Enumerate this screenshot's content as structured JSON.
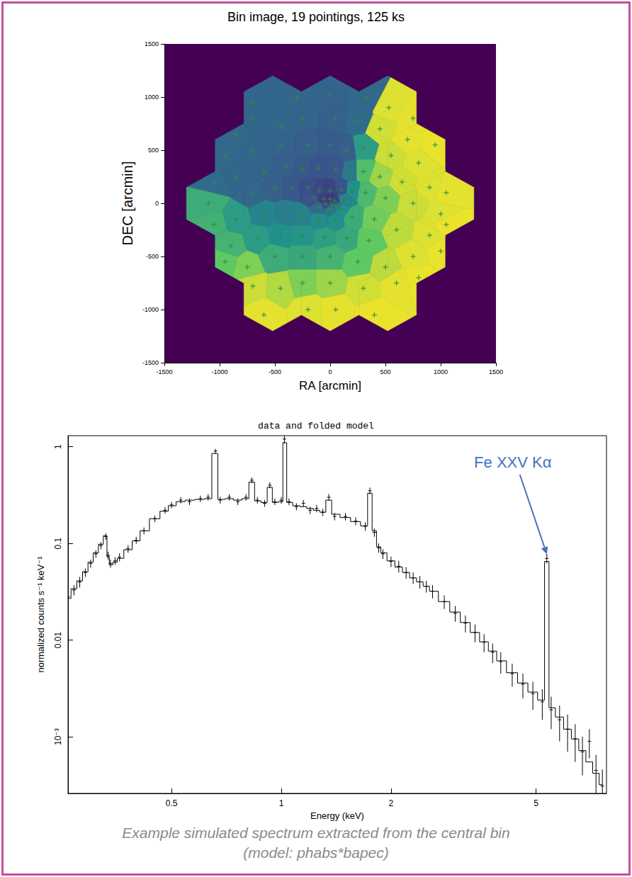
{
  "chart_data": [
    {
      "type": "binmap",
      "title": "Bin image, 19 pointings, 125 ks",
      "x_label": "RA [arcmin]",
      "y_label": "DEC [arcmin]",
      "xlim": [
        -1500,
        1500
      ],
      "ylim": [
        -1500,
        1500
      ],
      "xticks": [
        -1500,
        -1000,
        -500,
        0,
        500,
        1000,
        1500
      ],
      "yticks": [
        -1500,
        -1000,
        -500,
        0,
        500,
        1000,
        1500
      ],
      "marker": "plus",
      "pointings": {
        "x": [
          -520,
          0,
          520,
          -780,
          -260,
          260,
          780,
          -1040,
          -520,
          0,
          520,
          1040,
          -780,
          -260,
          260,
          780,
          -520,
          0,
          520
        ],
        "y": [
          900,
          900,
          900,
          450,
          450,
          450,
          450,
          0,
          0,
          0,
          0,
          0,
          -450,
          -450,
          -450,
          -450,
          -900,
          -900,
          -900
        ],
        "radius": 300
      },
      "color_range": [
        0,
        1
      ],
      "bins": {
        "x": [
          -700,
          -300,
          0,
          330,
          530,
          750,
          -700,
          -450,
          -250,
          50,
          250,
          450,
          700,
          950,
          -850,
          -950,
          -700,
          -450,
          -200,
          0,
          150,
          300,
          550,
          800,
          -1050,
          -850,
          -600,
          -400,
          -250,
          -100,
          50,
          180,
          300,
          450,
          650,
          900,
          1050,
          -700,
          -500,
          -350,
          -200,
          -100,
          0,
          100,
          200,
          320,
          500,
          750,
          1000,
          -60,
          0,
          40,
          -40,
          20,
          60,
          -100,
          0,
          100,
          130,
          -150,
          -1100,
          -1050,
          -850,
          -600,
          -400,
          -250,
          -100,
          50,
          200,
          400,
          600,
          900,
          1050,
          -900,
          -650,
          -450,
          -250,
          -50,
          150,
          350,
          750,
          1000,
          -950,
          -750,
          -500,
          -250,
          0,
          250,
          500,
          -700,
          -450,
          -250,
          0,
          300,
          600,
          800,
          -600,
          -200,
          50,
          400
        ],
        "y": [
          950,
          1000,
          1020,
          1000,
          900,
          800,
          800,
          720,
          800,
          800,
          780,
          700,
          600,
          550,
          650,
          450,
          500,
          550,
          550,
          550,
          500,
          520,
          450,
          380,
          200,
          250,
          300,
          350,
          320,
          330,
          320,
          300,
          300,
          250,
          200,
          150,
          100,
          100,
          150,
          150,
          150,
          120,
          120,
          130,
          120,
          100,
          50,
          0,
          -100,
          40,
          40,
          20,
          -10,
          -20,
          -30,
          -40,
          -60,
          -60,
          40,
          50,
          0,
          -200,
          -150,
          -100,
          -100,
          -120,
          -150,
          -150,
          -130,
          -150,
          -250,
          -300,
          -200,
          -400,
          -330,
          -300,
          -300,
          -320,
          -330,
          -350,
          -500,
          -450,
          -550,
          -600,
          -500,
          -500,
          -500,
          -550,
          -600,
          -780,
          -800,
          -750,
          -750,
          -800,
          -750,
          -700,
          -1050,
          -1000,
          -1000,
          -1050
        ],
        "values": [
          0.33,
          0.33,
          0.32,
          0.34,
          0.95,
          0.96,
          0.33,
          0.33,
          0.32,
          0.31,
          0.35,
          0.93,
          0.96,
          0.97,
          0.34,
          0.34,
          0.33,
          0.32,
          0.3,
          0.29,
          0.3,
          0.55,
          0.92,
          0.95,
          0.35,
          0.33,
          0.32,
          0.3,
          0.28,
          0.26,
          0.27,
          0.4,
          0.7,
          0.85,
          0.93,
          0.95,
          0.96,
          0.33,
          0.31,
          0.28,
          0.24,
          0.22,
          0.2,
          0.25,
          0.5,
          0.68,
          0.8,
          0.92,
          0.95,
          0.18,
          0.16,
          0.2,
          0.22,
          0.3,
          0.4,
          0.35,
          0.4,
          0.5,
          0.45,
          0.25,
          0.62,
          0.64,
          0.55,
          0.45,
          0.42,
          0.44,
          0.48,
          0.5,
          0.62,
          0.78,
          0.9,
          0.95,
          0.97,
          0.65,
          0.55,
          0.5,
          0.52,
          0.56,
          0.6,
          0.75,
          0.95,
          0.97,
          0.75,
          0.8,
          0.62,
          0.6,
          0.65,
          0.75,
          0.9,
          0.92,
          0.88,
          0.8,
          0.85,
          0.93,
          0.96,
          0.97,
          0.96,
          0.95,
          0.96,
          0.97
        ]
      }
    },
    {
      "type": "line",
      "title": "data and folded model",
      "x_label": "Energy (keV)",
      "y_label": "normalized counts s⁻¹ keV⁻¹",
      "log": true,
      "grid": false,
      "xlim": [
        0.26,
        7.8
      ],
      "ylim": [
        0.00026,
        1.3
      ],
      "xticks": [
        0.5,
        1,
        2,
        5
      ],
      "yticks": [
        {
          "value": 0.001,
          "label": "10⁻³"
        },
        0.01,
        0.1,
        1
      ],
      "x": [
        0.26,
        0.27,
        0.28,
        0.29,
        0.3,
        0.31,
        0.32,
        0.33,
        0.335,
        0.34,
        0.35,
        0.36,
        0.38,
        0.4,
        0.42,
        0.45,
        0.48,
        0.5,
        0.53,
        0.56,
        0.6,
        0.63,
        0.66,
        0.68,
        0.72,
        0.76,
        0.8,
        0.83,
        0.86,
        0.9,
        0.93,
        0.96,
        1,
        1.02,
        1.05,
        1.1,
        1.15,
        1.2,
        1.25,
        1.3,
        1.35,
        1.4,
        1.5,
        1.6,
        1.7,
        1.75,
        1.8,
        1.85,
        1.9,
        2,
        2.1,
        2.2,
        2.3,
        2.4,
        2.5,
        2.6,
        2.8,
        3,
        3.2,
        3.4,
        3.6,
        3.8,
        4,
        4.3,
        4.6,
        4.9,
        5.2,
        5.35,
        5.5,
        5.8,
        6.1,
        6.4,
        6.7,
        7,
        7.3,
        7.6
      ],
      "series": [
        {
          "type": "scatter",
          "marker": "cross",
          "color": "#000000",
          "values": [
            0.028,
            0.033,
            0.04,
            0.05,
            0.062,
            0.078,
            0.095,
            0.118,
            0.075,
            0.062,
            0.066,
            0.072,
            0.088,
            0.108,
            0.135,
            0.18,
            0.22,
            0.25,
            0.28,
            0.27,
            0.29,
            0.3,
            0.9,
            0.28,
            0.3,
            0.27,
            0.3,
            0.45,
            0.28,
            0.26,
            0.4,
            0.27,
            0.28,
            1.2,
            0.27,
            0.24,
            0.26,
            0.22,
            0.23,
            0.21,
            0.3,
            0.19,
            0.19,
            0.17,
            0.15,
            0.35,
            0.13,
            0.09,
            0.078,
            0.065,
            0.058,
            0.05,
            0.044,
            0.04,
            0.036,
            0.032,
            0.025,
            0.019,
            0.015,
            0.012,
            0.0095,
            0.0075,
            0.006,
            0.0045,
            0.0035,
            0.0028,
            0.0023,
            0.07,
            0.0019,
            0.0015,
            0.0012,
            0.00095,
            0.0007,
            0.0009,
            0.00045,
            0.00031
          ],
          "errors": [
            0.004,
            0.004,
            0.005,
            0.005,
            0.006,
            0.007,
            0.008,
            0.009,
            0.007,
            0.006,
            0.006,
            0.007,
            0.008,
            0.009,
            0.011,
            0.014,
            0.017,
            0.019,
            0.021,
            0.021,
            0.022,
            0.023,
            0.05,
            0.022,
            0.023,
            0.021,
            0.023,
            0.03,
            0.022,
            0.021,
            0.028,
            0.021,
            0.022,
            0.12,
            0.021,
            0.02,
            0.021,
            0.019,
            0.02,
            0.018,
            0.024,
            0.017,
            0.017,
            0.016,
            0.015,
            0.028,
            0.013,
            0.01,
            0.009,
            0.008,
            0.008,
            0.007,
            0.006,
            0.006,
            0.005,
            0.005,
            0.004,
            0.0035,
            0.003,
            0.0025,
            0.002,
            0.0017,
            0.0015,
            0.0012,
            0.001,
            0.0009,
            0.0008,
            0.008,
            0.0007,
            0.0006,
            0.0005,
            0.0004,
            0.0003,
            0.0003,
            0.0002,
            0.00015
          ]
        },
        {
          "type": "line",
          "line_style": "step",
          "color": "#000000",
          "values": [
            0.027,
            0.034,
            0.041,
            0.051,
            0.064,
            0.08,
            0.098,
            0.12,
            0.073,
            0.06,
            0.064,
            0.07,
            0.086,
            0.106,
            0.135,
            0.18,
            0.215,
            0.245,
            0.27,
            0.28,
            0.285,
            0.29,
            0.85,
            0.285,
            0.29,
            0.28,
            0.29,
            0.43,
            0.275,
            0.265,
            0.38,
            0.265,
            0.27,
            1.1,
            0.265,
            0.245,
            0.24,
            0.23,
            0.22,
            0.21,
            0.28,
            0.2,
            0.185,
            0.168,
            0.152,
            0.33,
            0.135,
            0.092,
            0.08,
            0.066,
            0.057,
            0.05,
            0.044,
            0.04,
            0.036,
            0.032,
            0.025,
            0.0195,
            0.0152,
            0.012,
            0.0096,
            0.0077,
            0.0061,
            0.0046,
            0.0036,
            0.0029,
            0.0024,
            0.065,
            0.002,
            0.0016,
            0.0012,
            0.00095,
            0.00072,
            0.00055,
            0.00042,
            0.00032
          ]
        }
      ],
      "annotations": [
        {
          "text": "Fe XXV Kα",
          "x": 5.35,
          "color": "#4472c4"
        }
      ],
      "caption": [
        "Example simulated spectrum extracted from the central bin",
        "(model: phabs*bapec)"
      ]
    }
  ]
}
